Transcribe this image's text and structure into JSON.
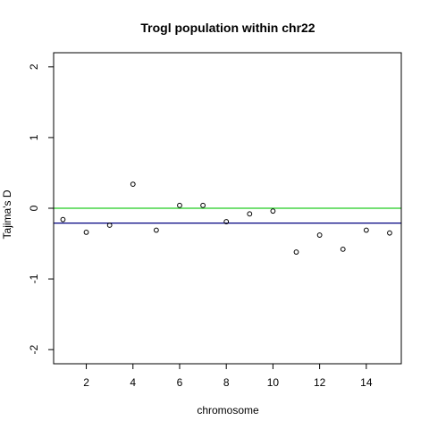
{
  "chart_data": {
    "type": "scatter",
    "title": "Trogl population within chr22",
    "xlabel": "chromosome",
    "ylabel": "Tajima's D",
    "xlim": [
      0.6,
      15.5
    ],
    "ylim": [
      -2.2,
      2.2
    ],
    "x_ticks": [
      2,
      4,
      6,
      8,
      10,
      12,
      14
    ],
    "y_ticks": [
      -2,
      -1,
      0,
      1,
      2
    ],
    "grid": false,
    "legend": "none",
    "x": [
      1,
      2,
      3,
      4,
      5,
      6,
      7,
      8,
      9,
      10,
      11,
      12,
      13,
      14,
      15
    ],
    "y": [
      -0.16,
      -0.34,
      -0.24,
      0.34,
      -0.31,
      0.04,
      0.04,
      -0.19,
      -0.08,
      -0.04,
      -0.62,
      -0.38,
      -0.58,
      -0.31,
      -0.35
    ],
    "reference_lines": [
      {
        "y": 0,
        "color": "#22cc22"
      },
      {
        "y": -0.21,
        "color": "#000080"
      }
    ],
    "point_color": "#000000"
  }
}
